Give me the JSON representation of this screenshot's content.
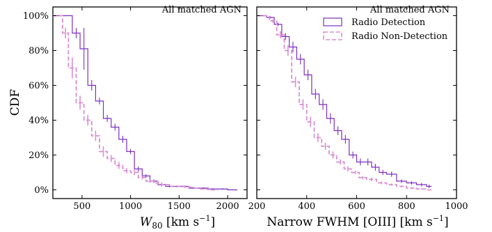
{
  "chart_data": [
    {
      "type": "step",
      "title": "",
      "annotation": "All matched AGN",
      "xlabel": {
        "main": "W",
        "sub": "80",
        "units": " [km s",
        "sup": "−1",
        "close": "]"
      },
      "ylabel": "CDF",
      "xlim": [
        200,
        2200
      ],
      "ylim": [
        -0.05,
        1.05
      ],
      "xticks": [
        500,
        1000,
        1500,
        2000
      ],
      "xtick_labels": [
        "500",
        "1000",
        "1500",
        "2000"
      ],
      "yticks": [
        0,
        0.2,
        0.4,
        0.6,
        0.8,
        1.0
      ],
      "ytick_labels": [
        "0%",
        "20%",
        "40%",
        "60%",
        "80%",
        "100%"
      ],
      "series": [
        {
          "key": "detection",
          "color": "#7b2fbf",
          "dashed": false,
          "x": [
            200,
            400,
            480,
            560,
            640,
            720,
            800,
            880,
            960,
            1040,
            1120,
            1200,
            1280,
            1360,
            1440,
            1520,
            1600,
            1700,
            1800,
            1900,
            2000,
            2100
          ],
          "y": [
            1.0,
            0.9,
            0.81,
            0.6,
            0.51,
            0.41,
            0.36,
            0.29,
            0.22,
            0.12,
            0.08,
            0.05,
            0.03,
            0.02,
            0.02,
            0.02,
            0.01,
            0.01,
            0.005,
            0.005,
            0.0,
            0.0
          ],
          "err": [
            0,
            0.03,
            0.12,
            0.03,
            0.02,
            0.02,
            0.02,
            0.02,
            0.015,
            0.015,
            0.01,
            0.01,
            0.01,
            0.005,
            0.005,
            0.005,
            0.005,
            0.005,
            0.004,
            0.004,
            0.002,
            0.002
          ]
        },
        {
          "key": "non_detection",
          "color": "#d98fd1",
          "dashed": true,
          "x": [
            200,
            300,
            360,
            440,
            520,
            600,
            680,
            760,
            840,
            920,
            1000,
            1080,
            1160,
            1240,
            1320,
            1400,
            1480,
            1560,
            1640,
            1720,
            1800,
            1900
          ],
          "y": [
            1.0,
            0.9,
            0.7,
            0.5,
            0.4,
            0.31,
            0.22,
            0.18,
            0.14,
            0.11,
            0.1,
            0.07,
            0.05,
            0.04,
            0.03,
            0.02,
            0.02,
            0.015,
            0.01,
            0.005,
            0.0,
            0.0
          ],
          "err": [
            0,
            0.03,
            0.06,
            0.04,
            0.03,
            0.03,
            0.03,
            0.02,
            0.02,
            0.015,
            0.015,
            0.01,
            0.01,
            0.01,
            0.005,
            0.005,
            0.005,
            0.005,
            0.004,
            0.003,
            0.002,
            0.002
          ]
        }
      ]
    },
    {
      "type": "step",
      "title": "",
      "annotation": "All matched AGN",
      "xlabel": {
        "main": "Narrow FWHM [OIII] [km s",
        "sup": "−1",
        "close": "]"
      },
      "ylabel": "",
      "xlim": [
        200,
        1000
      ],
      "ylim": [
        -0.05,
        1.05
      ],
      "xticks": [
        200,
        400,
        600,
        800,
        1000
      ],
      "xtick_labels": [
        "200",
        "400",
        "600",
        "800",
        "1000"
      ],
      "yticks": [
        0,
        0.2,
        0.4,
        0.6,
        0.8,
        1.0
      ],
      "legend": {
        "placement": "top-right"
      },
      "series": [
        {
          "key": "detection",
          "name": "Radio Detection",
          "color": "#7b2fbf",
          "dashed": false,
          "x": [
            200,
            240,
            270,
            300,
            330,
            360,
            390,
            420,
            450,
            480,
            510,
            540,
            570,
            600,
            630,
            660,
            690,
            720,
            760,
            800,
            840,
            880,
            900
          ],
          "y": [
            1.0,
            0.99,
            0.95,
            0.88,
            0.82,
            0.75,
            0.66,
            0.55,
            0.49,
            0.41,
            0.34,
            0.29,
            0.2,
            0.16,
            0.16,
            0.13,
            0.1,
            0.09,
            0.05,
            0.04,
            0.03,
            0.02,
            0.02
          ],
          "err": [
            0,
            0.005,
            0.01,
            0.02,
            0.03,
            0.03,
            0.03,
            0.03,
            0.03,
            0.03,
            0.025,
            0.025,
            0.02,
            0.02,
            0.02,
            0.02,
            0.015,
            0.015,
            0.01,
            0.01,
            0.01,
            0.01,
            0.01
          ]
        },
        {
          "key": "non_detection",
          "name": "Radio Non-Detection",
          "color": "#d98fd1",
          "dashed": true,
          "x": [
            200,
            250,
            280,
            310,
            340,
            370,
            400,
            430,
            460,
            490,
            520,
            550,
            580,
            610,
            640,
            680,
            720,
            760,
            800,
            840,
            880,
            900
          ],
          "y": [
            1.0,
            0.97,
            0.89,
            0.8,
            0.62,
            0.49,
            0.39,
            0.3,
            0.25,
            0.2,
            0.16,
            0.12,
            0.1,
            0.07,
            0.06,
            0.04,
            0.03,
            0.02,
            0.01,
            0.005,
            0.0,
            0.0
          ],
          "err": [
            0,
            0.01,
            0.02,
            0.03,
            0.03,
            0.03,
            0.03,
            0.025,
            0.02,
            0.02,
            0.015,
            0.015,
            0.01,
            0.01,
            0.01,
            0.008,
            0.006,
            0.005,
            0.004,
            0.003,
            0.002,
            0.002
          ]
        }
      ]
    }
  ]
}
